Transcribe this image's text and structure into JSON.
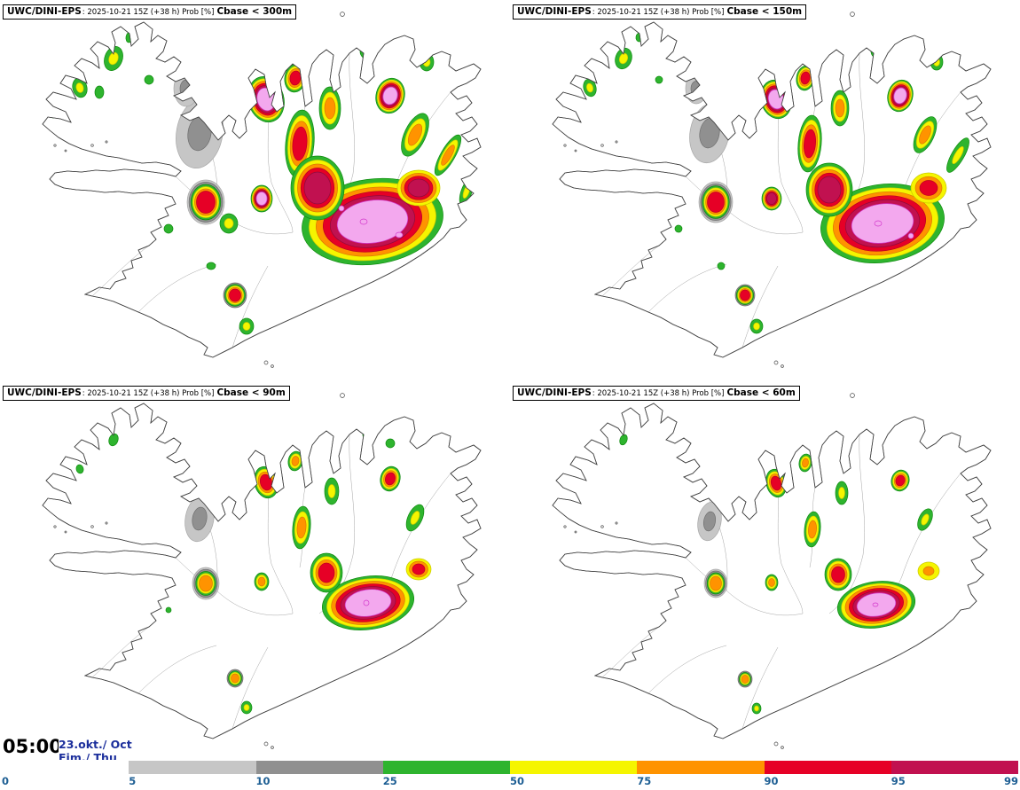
{
  "app": {
    "description": "Ensemble probability forecast maps of cloud base height over Iceland"
  },
  "panels": [
    {
      "model": "UWC/DINI-EPS",
      "meta": ": 2025-10-21 15Z (+38 h) Prob [%]",
      "threshold": "Cbase < 300m"
    },
    {
      "model": "UWC/DINI-EPS",
      "meta": ": 2025-10-21 15Z (+38 h) Prob [%]",
      "threshold": "Cbase < 150m"
    },
    {
      "model": "UWC/DINI-EPS",
      "meta": ": 2025-10-21 15Z (+38 h) Prob [%]",
      "threshold": "Cbase < 90m"
    },
    {
      "model": "UWC/DINI-EPS",
      "meta": ": 2025-10-21 15Z (+38 h) Prob [%]",
      "threshold": "Cbase < 60m"
    }
  ],
  "footer": {
    "time": "05:00",
    "time_color": "#000000",
    "date_line1": "23.okt./ Oct",
    "date_line2": "Fim./ Thu",
    "date_color": "#1c2f9c"
  },
  "legend": {
    "ticks": [
      "0",
      "5",
      "10",
      "25",
      "50",
      "75",
      "90",
      "95",
      "99"
    ],
    "segment_colors": [
      "#ffffff",
      "#c6c6c6",
      "#909090",
      "#2eb42e",
      "#f5f500",
      "#ff9300",
      "#e60026",
      "#c11150"
    ],
    "tick_color": "#1d5e93",
    "unit": "Prob [%]"
  },
  "palette": {
    "levels_pct": [
      "5",
      "10",
      "25",
      "50",
      "75",
      "90",
      "95",
      "99+"
    ],
    "fill": [
      "#c6c6c6",
      "#909090",
      "#2eb42e",
      "#f5f500",
      "#ff9300",
      "#e60026",
      "#c11150",
      "#f3a8ee"
    ],
    "stroke": [
      "#a8a8a8",
      "#6f6f6f",
      "#0e8a0e",
      "#c9c900",
      "#d97c00",
      "#bd001f",
      "#8e0b3c",
      "#d338cc"
    ]
  },
  "map_data": {
    "region": "Iceland",
    "blob_format": [
      "x",
      "y",
      "rx",
      "ry",
      "rot_deg",
      "min_level",
      "max_level"
    ],
    "panels": [
      {
        "threshold_m": 300,
        "blobs": [
          [
            128,
            66,
            10,
            14,
            20,
            2,
            3
          ],
          [
            90,
            99,
            8,
            11,
            -15,
            2,
            3
          ],
          [
            112,
            104,
            5,
            7,
            0,
            2,
            2
          ],
          [
            146,
            42,
            4,
            6,
            10,
            2,
            2
          ],
          [
            168,
            90,
            5,
            5,
            0,
            2,
            2
          ],
          [
            60,
            128,
            4,
            5,
            0,
            2,
            2
          ],
          [
            225,
            150,
            26,
            40,
            10,
            0,
            1
          ],
          [
            210,
            100,
            14,
            20,
            0,
            0,
            1
          ],
          [
            255,
            75,
            10,
            12,
            0,
            0,
            1
          ],
          [
            232,
            228,
            21,
            25,
            0,
            0,
            5
          ],
          [
            295,
            224,
            12,
            15,
            0,
            2,
            7
          ],
          [
            258,
            252,
            10,
            11,
            0,
            2,
            3
          ],
          [
            300,
            112,
            20,
            26,
            -15,
            2,
            7
          ],
          [
            333,
            88,
            12,
            16,
            10,
            2,
            5
          ],
          [
            338,
            162,
            16,
            38,
            5,
            2,
            5
          ],
          [
            372,
            122,
            12,
            24,
            0,
            2,
            4
          ],
          [
            440,
            108,
            16,
            20,
            15,
            2,
            7
          ],
          [
            468,
            152,
            12,
            26,
            25,
            2,
            4
          ],
          [
            415,
            58,
            9,
            9,
            0,
            2,
            3
          ],
          [
            481,
            70,
            8,
            10,
            0,
            2,
            3
          ],
          [
            420,
            250,
            80,
            48,
            -8,
            2,
            7
          ],
          [
            358,
            212,
            30,
            36,
            0,
            2,
            6
          ],
          [
            472,
            212,
            24,
            20,
            0,
            3,
            6
          ],
          [
            505,
            175,
            8,
            26,
            30,
            2,
            4
          ],
          [
            526,
            216,
            6,
            16,
            20,
            2,
            3
          ],
          [
            265,
            333,
            13,
            14,
            0,
            1,
            5
          ],
          [
            278,
            368,
            8,
            9,
            0,
            2,
            3
          ],
          [
            190,
            258,
            5,
            5,
            0,
            2,
            2
          ],
          [
            532,
            248,
            4,
            5,
            0,
            2,
            2
          ],
          [
            238,
            300,
            5,
            4,
            0,
            2,
            2
          ],
          [
            410,
            250,
            4,
            3,
            0,
            7,
            7
          ],
          [
            450,
            265,
            4,
            3,
            0,
            7,
            7
          ],
          [
            385,
            235,
            3,
            3,
            0,
            7,
            7
          ]
        ]
      },
      {
        "threshold_m": 150,
        "blobs": [
          [
            128,
            66,
            9,
            12,
            20,
            2,
            3
          ],
          [
            90,
            99,
            7,
            10,
            -15,
            2,
            3
          ],
          [
            146,
            42,
            4,
            5,
            10,
            2,
            2
          ],
          [
            168,
            90,
            4,
            4,
            0,
            2,
            2
          ],
          [
            225,
            150,
            22,
            34,
            10,
            0,
            1
          ],
          [
            210,
            100,
            12,
            17,
            0,
            0,
            1
          ],
          [
            232,
            228,
            19,
            23,
            0,
            0,
            5
          ],
          [
            295,
            224,
            11,
            13,
            0,
            2,
            6
          ],
          [
            300,
            112,
            17,
            22,
            -15,
            2,
            7
          ],
          [
            333,
            88,
            10,
            14,
            10,
            2,
            5
          ],
          [
            338,
            162,
            13,
            32,
            5,
            2,
            5
          ],
          [
            372,
            122,
            10,
            20,
            0,
            2,
            4
          ],
          [
            440,
            108,
            14,
            18,
            15,
            2,
            7
          ],
          [
            468,
            152,
            10,
            22,
            25,
            2,
            4
          ],
          [
            415,
            58,
            8,
            8,
            0,
            2,
            3
          ],
          [
            481,
            70,
            7,
            9,
            0,
            2,
            3
          ],
          [
            420,
            252,
            70,
            44,
            -8,
            2,
            7
          ],
          [
            360,
            214,
            26,
            30,
            0,
            2,
            6
          ],
          [
            472,
            212,
            20,
            17,
            0,
            3,
            5
          ],
          [
            505,
            175,
            7,
            22,
            30,
            2,
            3
          ],
          [
            265,
            333,
            11,
            12,
            0,
            1,
            5
          ],
          [
            278,
            368,
            7,
            8,
            0,
            2,
            3
          ],
          [
            190,
            258,
            4,
            4,
            0,
            2,
            2
          ],
          [
            238,
            300,
            4,
            4,
            0,
            2,
            2
          ],
          [
            415,
            252,
            4,
            3,
            0,
            7,
            7
          ],
          [
            452,
            266,
            3,
            3,
            0,
            7,
            7
          ]
        ]
      },
      {
        "threshold_m": 90,
        "blobs": [
          [
            128,
            66,
            5,
            7,
            20,
            2,
            2
          ],
          [
            90,
            99,
            4,
            5,
            -15,
            2,
            2
          ],
          [
            225,
            155,
            16,
            26,
            10,
            0,
            1
          ],
          [
            232,
            228,
            15,
            18,
            0,
            0,
            4
          ],
          [
            295,
            226,
            8,
            10,
            0,
            2,
            4
          ],
          [
            300,
            114,
            13,
            18,
            -15,
            2,
            5
          ],
          [
            333,
            90,
            8,
            11,
            10,
            2,
            4
          ],
          [
            340,
            165,
            10,
            24,
            5,
            2,
            4
          ],
          [
            374,
            124,
            8,
            15,
            0,
            2,
            3
          ],
          [
            440,
            110,
            11,
            14,
            15,
            2,
            5
          ],
          [
            468,
            154,
            8,
            16,
            25,
            2,
            3
          ],
          [
            415,
            60,
            6,
            6,
            0,
            2,
            2
          ],
          [
            440,
            70,
            5,
            5,
            0,
            2,
            2
          ],
          [
            415,
            250,
            52,
            30,
            -8,
            2,
            7
          ],
          [
            368,
            216,
            18,
            22,
            0,
            2,
            5
          ],
          [
            472,
            212,
            14,
            12,
            0,
            3,
            5
          ],
          [
            265,
            335,
            9,
            10,
            0,
            1,
            4
          ],
          [
            278,
            368,
            6,
            7,
            0,
            2,
            3
          ],
          [
            190,
            258,
            3,
            3,
            0,
            2,
            2
          ],
          [
            413,
            250,
            3,
            3,
            0,
            7,
            7
          ]
        ]
      },
      {
        "threshold_m": 60,
        "blobs": [
          [
            128,
            66,
            4,
            6,
            20,
            2,
            2
          ],
          [
            225,
            158,
            13,
            22,
            10,
            0,
            1
          ],
          [
            232,
            228,
            13,
            16,
            0,
            0,
            4
          ],
          [
            295,
            227,
            7,
            9,
            0,
            2,
            4
          ],
          [
            300,
            115,
            11,
            16,
            -15,
            2,
            5
          ],
          [
            333,
            92,
            7,
            10,
            10,
            2,
            4
          ],
          [
            341,
            167,
            9,
            20,
            5,
            2,
            4
          ],
          [
            374,
            126,
            7,
            13,
            0,
            2,
            3
          ],
          [
            440,
            112,
            10,
            12,
            15,
            2,
            5
          ],
          [
            468,
            156,
            7,
            13,
            25,
            2,
            3
          ],
          [
            413,
            252,
            44,
            26,
            -8,
            2,
            7
          ],
          [
            370,
            218,
            15,
            18,
            0,
            2,
            5
          ],
          [
            472,
            214,
            12,
            10,
            0,
            3,
            4
          ],
          [
            265,
            336,
            8,
            9,
            0,
            1,
            4
          ],
          [
            278,
            369,
            5,
            6,
            0,
            2,
            3
          ],
          [
            412,
            252,
            3,
            2,
            0,
            7,
            7
          ]
        ]
      }
    ]
  }
}
